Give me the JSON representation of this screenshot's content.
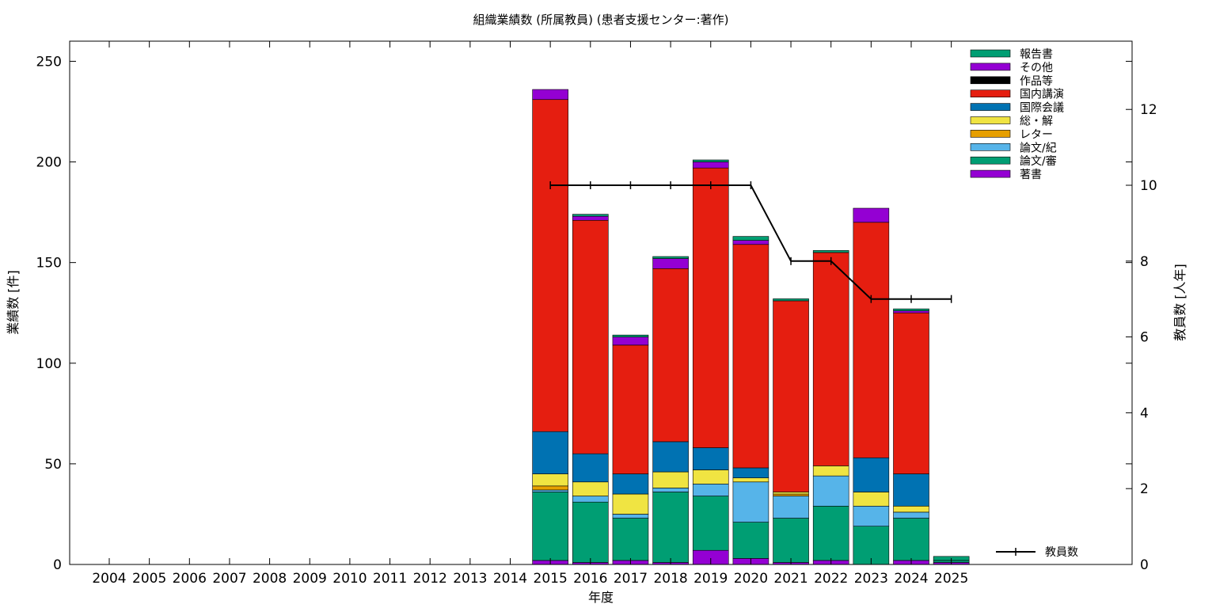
{
  "chart_data": {
    "type": "bar",
    "stacked": true,
    "title": "組織業績数 (所属教員) (患者支援センター:著作)",
    "xlabel": "年度",
    "ylabel": "業績数 [件]",
    "y2label": "教員数 [人年]",
    "categories": [
      "2004",
      "2005",
      "2006",
      "2007",
      "2008",
      "2009",
      "2010",
      "2011",
      "2012",
      "2013",
      "2014",
      "2015",
      "2016",
      "2017",
      "2018",
      "2019",
      "2020",
      "2021",
      "2022",
      "2023",
      "2024",
      "2025"
    ],
    "ylim": [
      0,
      260
    ],
    "yticks": [
      "0",
      "50",
      "100",
      "150",
      "200",
      "250"
    ],
    "y2lim": [
      0,
      13.8
    ],
    "y2ticks": [
      "0",
      "2",
      "4",
      "6",
      "8",
      "10",
      "12"
    ],
    "grid": false,
    "legend_position": "top-right",
    "series": [
      {
        "name": "著書",
        "color": "#9400d3",
        "values": [
          0,
          0,
          0,
          0,
          0,
          0,
          0,
          0,
          0,
          0,
          0,
          2,
          1,
          2,
          1,
          7,
          3,
          1,
          2,
          0,
          2,
          1
        ]
      },
      {
        "name": "論文/審",
        "color": "#009e73",
        "values": [
          0,
          0,
          0,
          0,
          0,
          0,
          0,
          0,
          0,
          0,
          0,
          34,
          30,
          21,
          35,
          27,
          18,
          22,
          27,
          19,
          21,
          1
        ]
      },
      {
        "name": "論文/紀",
        "color": "#56b4e9",
        "values": [
          0,
          0,
          0,
          0,
          0,
          0,
          0,
          0,
          0,
          0,
          0,
          1,
          3,
          2,
          2,
          6,
          20,
          11,
          15,
          10,
          3,
          0
        ]
      },
      {
        "name": "レター",
        "color": "#e69f00",
        "values": [
          0,
          0,
          0,
          0,
          0,
          0,
          0,
          0,
          0,
          0,
          0,
          2,
          0,
          0,
          0,
          0,
          0,
          1,
          0,
          0,
          0,
          0
        ]
      },
      {
        "name": "総・解",
        "color": "#f0e442",
        "values": [
          0,
          0,
          0,
          0,
          0,
          0,
          0,
          0,
          0,
          0,
          0,
          6,
          7,
          10,
          8,
          7,
          2,
          1,
          5,
          7,
          3,
          0
        ]
      },
      {
        "name": "国際会議",
        "color": "#0072b2",
        "values": [
          0,
          0,
          0,
          0,
          0,
          0,
          0,
          0,
          0,
          0,
          0,
          21,
          14,
          10,
          15,
          11,
          5,
          0,
          0,
          17,
          16,
          0
        ]
      },
      {
        "name": "国内講演",
        "color": "#e51e10",
        "values": [
          0,
          0,
          0,
          0,
          0,
          0,
          0,
          0,
          0,
          0,
          0,
          165,
          116,
          64,
          86,
          139,
          111,
          95,
          106,
          117,
          80,
          0
        ]
      },
      {
        "name": "作品等",
        "color": "#000000",
        "values": [
          0,
          0,
          0,
          0,
          0,
          0,
          0,
          0,
          0,
          0,
          0,
          0,
          0,
          0,
          0,
          0,
          0,
          0,
          0,
          0,
          0,
          0
        ]
      },
      {
        "name": "その他",
        "color": "#9400d3",
        "values": [
          0,
          0,
          0,
          0,
          0,
          0,
          0,
          0,
          0,
          0,
          0,
          5,
          2,
          4,
          5,
          3,
          2,
          0,
          0,
          7,
          1,
          0
        ]
      },
      {
        "name": "報告書",
        "color": "#009e73",
        "values": [
          0,
          0,
          0,
          0,
          0,
          0,
          0,
          0,
          0,
          0,
          0,
          0,
          1,
          1,
          1,
          1,
          2,
          1,
          1,
          0,
          1,
          2
        ]
      }
    ],
    "line_series": {
      "name": "教員数",
      "color": "#000000",
      "axis": "y2",
      "x": [
        "2015",
        "2016",
        "2017",
        "2018",
        "2019",
        "2020",
        "2021",
        "2022",
        "2023",
        "2024",
        "2025"
      ],
      "values": [
        10,
        10,
        10,
        10,
        10,
        10,
        8,
        8,
        7,
        7,
        7
      ]
    }
  }
}
